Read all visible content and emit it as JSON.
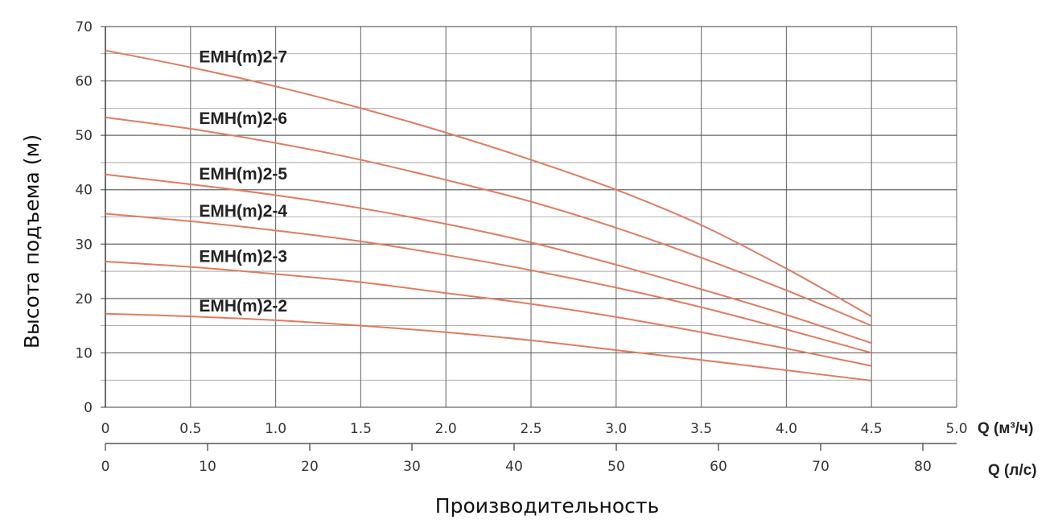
{
  "chart_data": {
    "type": "line",
    "ylabel": "Высота подъема (м)",
    "xlabel": "Производительность",
    "x_unit_label": "Q (м³/ч)",
    "x2_unit_label": "Q (л/с)",
    "xlim": [
      0,
      5.0
    ],
    "ylim": [
      0,
      70
    ],
    "x_ticks": [
      "0",
      "0.5",
      "1.0",
      "1.5",
      "2.0",
      "2.5",
      "3.0",
      "3.5",
      "4.0",
      "4.5",
      "5.0"
    ],
    "x2_ticks": [
      "0",
      "10",
      "20",
      "30",
      "40",
      "50",
      "60",
      "70",
      "80"
    ],
    "y_ticks": [
      "0",
      "10",
      "20",
      "30",
      "40",
      "50",
      "60",
      "70"
    ],
    "grid": true,
    "x": [
      0,
      0.5,
      1.0,
      1.5,
      2.0,
      2.5,
      3.0,
      3.5,
      4.0,
      4.5
    ],
    "series": [
      {
        "name": "EMH(m)2-7",
        "values": [
          65.6,
          62.5,
          59,
          55,
          50.5,
          45.5,
          40,
          33.5,
          25.5,
          16.7
        ]
      },
      {
        "name": "EMH(m)2-6",
        "values": [
          53.3,
          51.2,
          48.6,
          45.5,
          41.8,
          37.8,
          33,
          27.5,
          21.5,
          15
        ]
      },
      {
        "name": "EMH(m)2-5",
        "values": [
          42.8,
          41,
          39,
          36.6,
          33.7,
          30.3,
          26.2,
          21.7,
          17,
          11.8
        ]
      },
      {
        "name": "EMH(m)2-4",
        "values": [
          35.6,
          34.2,
          32.5,
          30.5,
          28,
          25.2,
          22,
          18.4,
          14.3,
          10
        ]
      },
      {
        "name": "EMH(m)2-3",
        "values": [
          26.8,
          25.8,
          24.5,
          23,
          21,
          19,
          16.6,
          13.8,
          10.8,
          7.6
        ]
      },
      {
        "name": "EMH(m)2-2",
        "values": [
          17.2,
          16.7,
          16,
          15,
          13.8,
          12.3,
          10.5,
          8.7,
          6.8,
          4.9
        ]
      }
    ],
    "line_color": "#E07C5E",
    "grid_color": "#555555"
  }
}
